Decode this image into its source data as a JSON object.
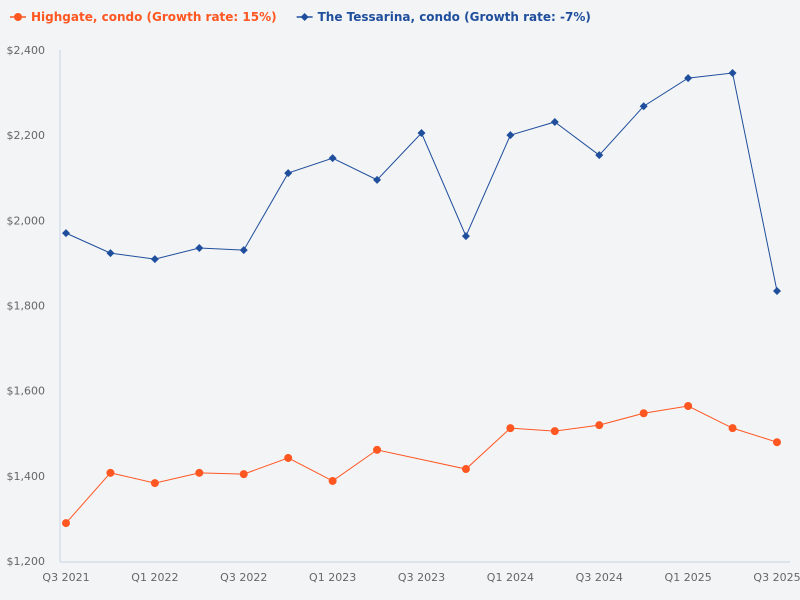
{
  "chart_data": {
    "type": "line",
    "title": "",
    "xlabel": "",
    "ylabel": "",
    "ylim": [
      1200,
      2400
    ],
    "yticks": [
      1200,
      1400,
      1600,
      1800,
      2000,
      2200,
      2400
    ],
    "ytick_labels": [
      "$1,200",
      "$1,400",
      "$1,600",
      "$1,800",
      "$2,000",
      "$2,200",
      "$2,400"
    ],
    "grid": false,
    "legend_placement": "top-left",
    "x": [
      "Q3 2021",
      "Q4 2021",
      "Q1 2022",
      "Q2 2022",
      "Q3 2022",
      "Q4 2022",
      "Q1 2023",
      "Q2 2023",
      "Q3 2023",
      "Q4 2023",
      "Q1 2024",
      "Q2 2024",
      "Q3 2024",
      "Q4 2024",
      "Q1 2025",
      "Q2 2025",
      "Q3 2025"
    ],
    "xtick_labels": [
      "Q3 2021",
      "Q1 2022",
      "Q3 2022",
      "Q1 2023",
      "Q3 2023",
      "Q1 2024",
      "Q3 2024",
      "Q1 2025",
      "Q3 2025"
    ],
    "series": [
      {
        "name": "Highgate, condo (Growth rate: 15%)",
        "color": "#ff5722",
        "marker": "circle",
        "values": [
          1289,
          1407,
          1383,
          1407,
          1404,
          1442,
          1388,
          1461,
          null,
          1416,
          1512,
          1505,
          1519,
          1547,
          1564,
          1512,
          1479
        ]
      },
      {
        "name": "The Tessarina, condo (Growth rate: -7%)",
        "color": "#1f4e9c",
        "marker": "diamond",
        "values": [
          1970,
          1923,
          1909,
          1935,
          1930,
          2111,
          2146,
          2095,
          2205,
          1963,
          2200,
          2231,
          2153,
          2268,
          2334,
          2346,
          1834
        ]
      }
    ]
  }
}
